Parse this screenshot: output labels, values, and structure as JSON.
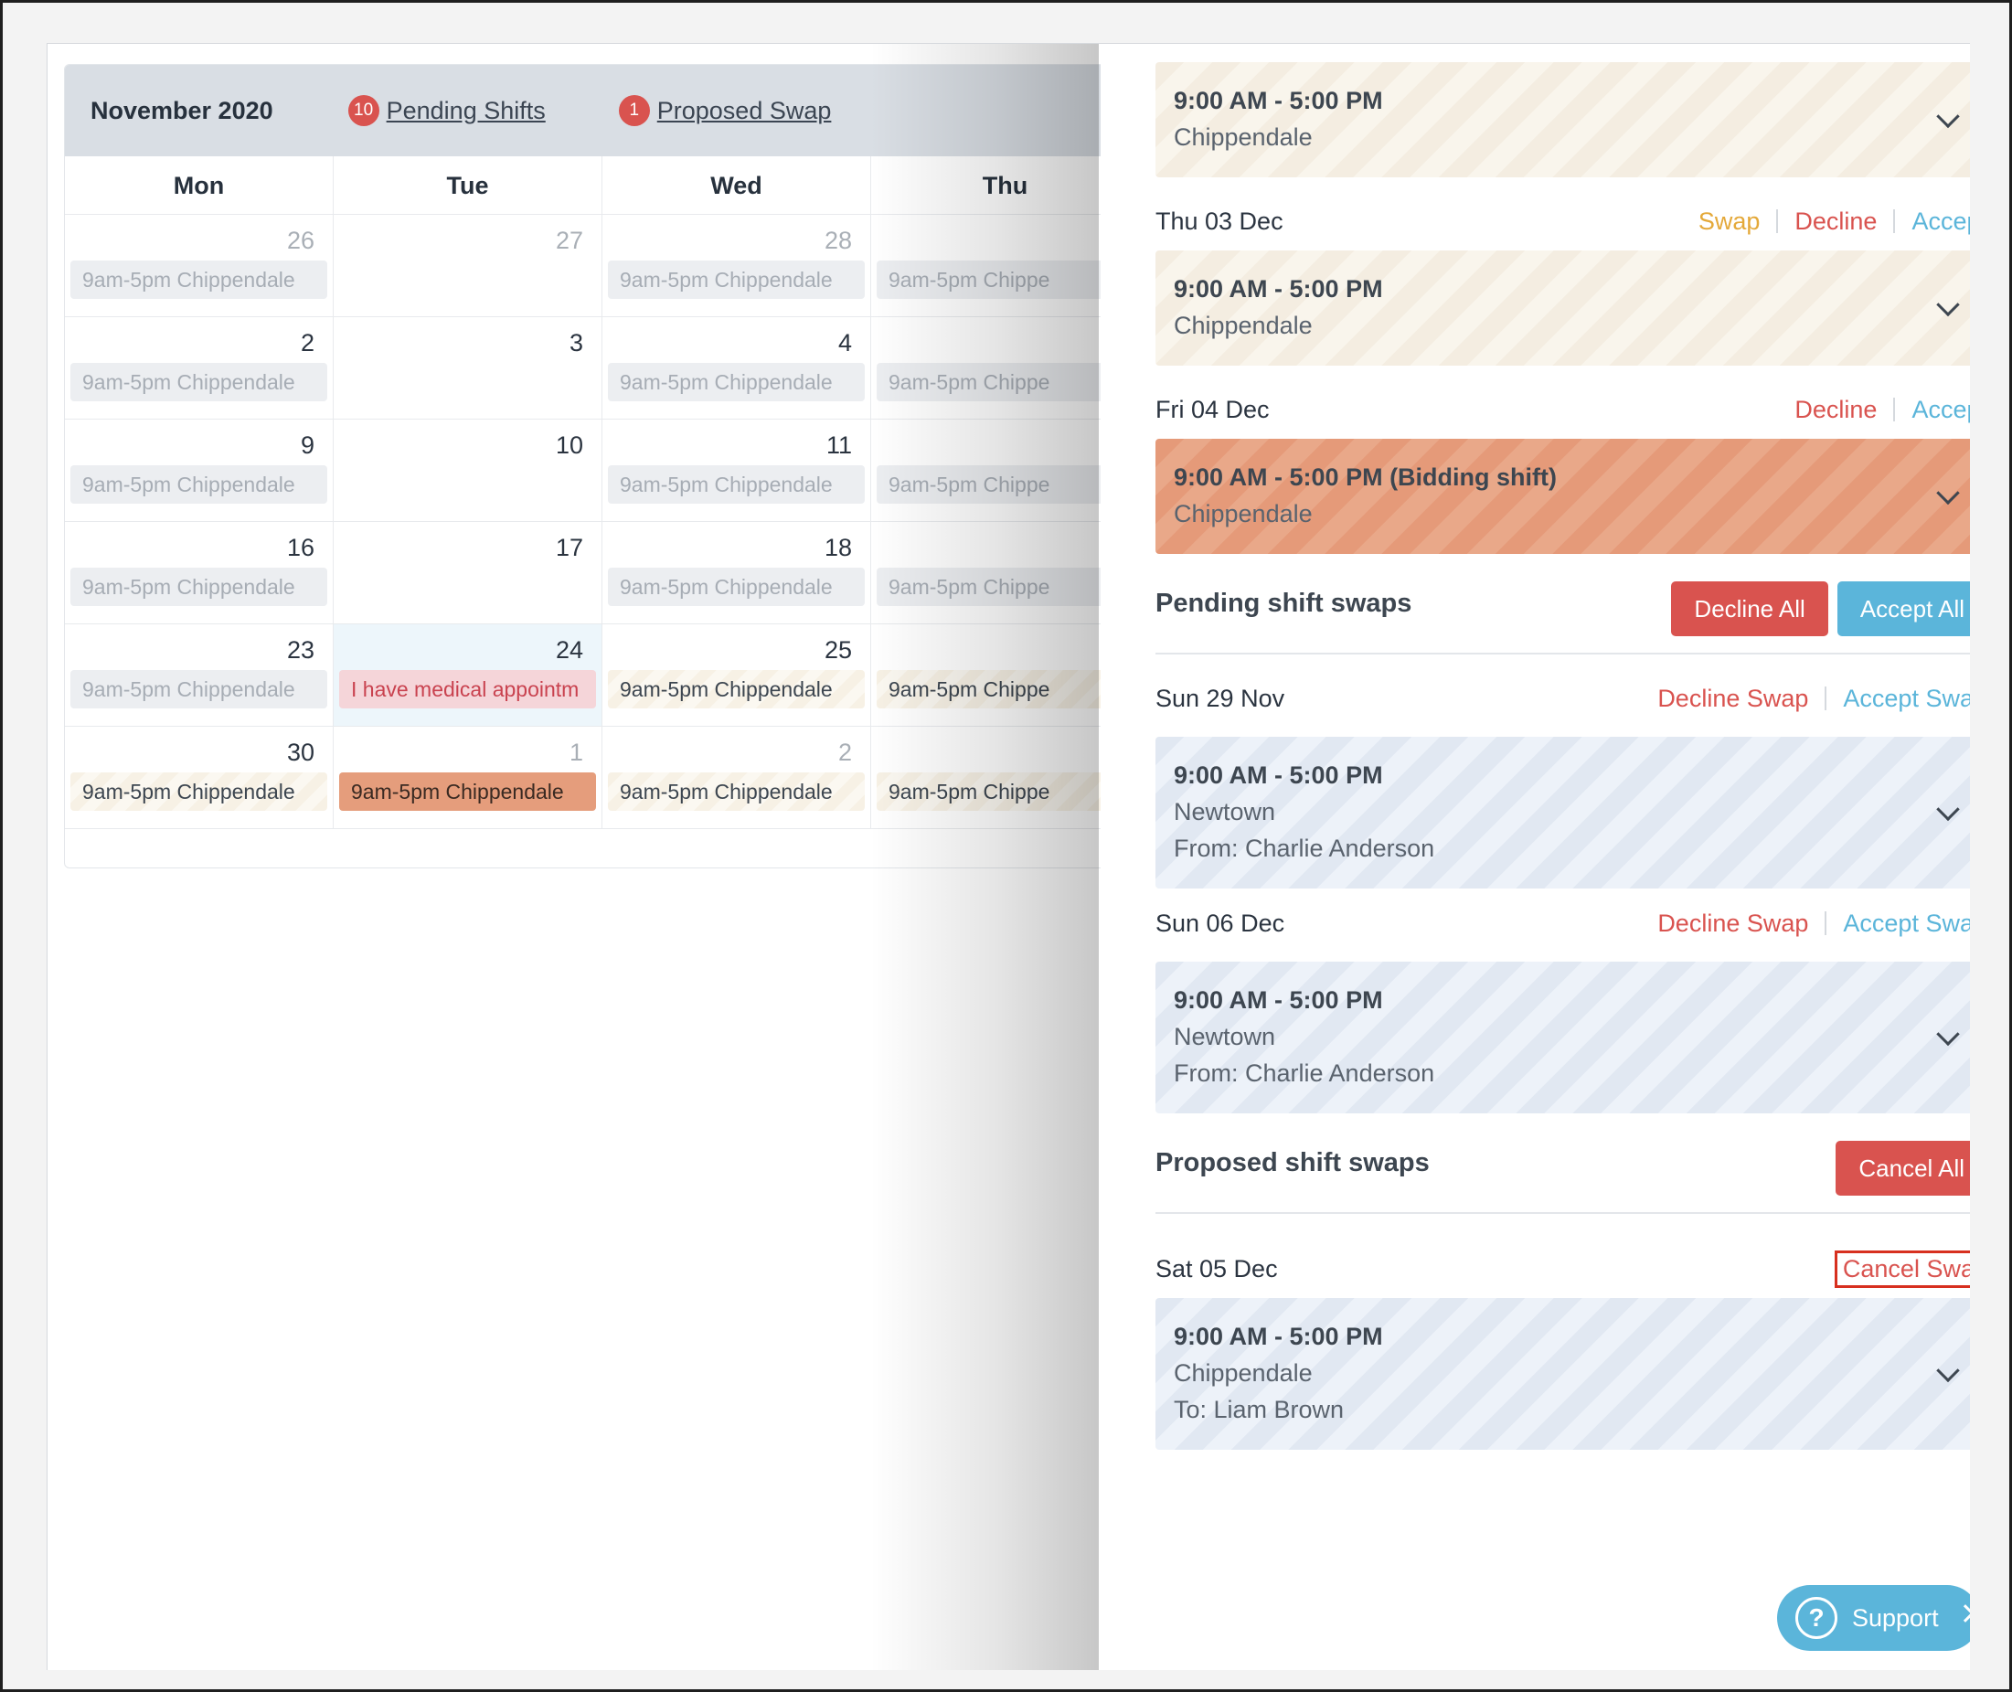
{
  "calendar": {
    "month_title": "November 2020",
    "pending_shifts": {
      "count": "10",
      "label": "Pending Shifts"
    },
    "proposed_swap": {
      "count": "1",
      "label": "Proposed Swap"
    },
    "day_headers": [
      "Mon",
      "Tue",
      "Wed",
      "Thu"
    ],
    "weeks": [
      {
        "cells": [
          {
            "day": "26",
            "muted": true,
            "event": "9am-5pm Chippendale",
            "style": "grey"
          },
          {
            "day": "27",
            "muted": true,
            "event": null,
            "style": null
          },
          {
            "day": "28",
            "muted": true,
            "event": "9am-5pm Chippendale",
            "style": "grey"
          },
          {
            "day": "",
            "muted": true,
            "event": "9am-5pm Chippe",
            "style": "grey"
          }
        ]
      },
      {
        "cells": [
          {
            "day": "2",
            "muted": false,
            "event": "9am-5pm Chippendale",
            "style": "grey"
          },
          {
            "day": "3",
            "muted": false,
            "event": null,
            "style": null
          },
          {
            "day": "4",
            "muted": false,
            "event": "9am-5pm Chippendale",
            "style": "grey"
          },
          {
            "day": "",
            "muted": false,
            "event": "9am-5pm Chippe",
            "style": "grey"
          }
        ]
      },
      {
        "cells": [
          {
            "day": "9",
            "muted": false,
            "event": "9am-5pm Chippendale",
            "style": "grey"
          },
          {
            "day": "10",
            "muted": false,
            "event": null,
            "style": null
          },
          {
            "day": "11",
            "muted": false,
            "event": "9am-5pm Chippendale",
            "style": "grey"
          },
          {
            "day": "",
            "muted": false,
            "event": "9am-5pm Chippe",
            "style": "grey"
          }
        ]
      },
      {
        "cells": [
          {
            "day": "16",
            "muted": false,
            "event": "9am-5pm Chippendale",
            "style": "grey"
          },
          {
            "day": "17",
            "muted": false,
            "event": null,
            "style": null
          },
          {
            "day": "18",
            "muted": false,
            "event": "9am-5pm Chippendale",
            "style": "grey"
          },
          {
            "day": "",
            "muted": false,
            "event": "9am-5pm Chippe",
            "style": "grey"
          }
        ]
      },
      {
        "cells": [
          {
            "day": "23",
            "muted": false,
            "event": "9am-5pm Chippendale",
            "style": "grey"
          },
          {
            "day": "24",
            "muted": false,
            "today": true,
            "event": "I have medical appointm",
            "style": "pink"
          },
          {
            "day": "25",
            "muted": false,
            "event": "9am-5pm Chippendale",
            "style": "beige"
          },
          {
            "day": "",
            "muted": false,
            "event": "9am-5pm Chippe",
            "style": "beige"
          }
        ]
      },
      {
        "cells": [
          {
            "day": "30",
            "muted": false,
            "event": "9am-5pm Chippendale",
            "style": "beige"
          },
          {
            "day": "1",
            "muted": true,
            "event": "9am-5pm Chippendale",
            "style": "orange"
          },
          {
            "day": "2",
            "muted": true,
            "event": "9am-5pm Chippendale",
            "style": "beige"
          },
          {
            "day": "",
            "muted": true,
            "event": "9am-5pm Chippe",
            "style": "beige"
          }
        ]
      }
    ]
  },
  "panel": {
    "top_card": {
      "time": "9:00 AM - 5:00 PM",
      "location": "Chippendale"
    },
    "thu_03": {
      "date": "Thu 03 Dec",
      "swap": "Swap",
      "decline": "Decline",
      "accept": "Accept",
      "time": "9:00 AM - 5:00 PM",
      "location": "Chippendale"
    },
    "fri_04": {
      "date": "Fri 04 Dec",
      "decline": "Decline",
      "accept": "Accept",
      "time": "9:00 AM - 5:00 PM (Bidding shift)",
      "location": "Chippendale"
    },
    "pending_swaps": {
      "title": "Pending shift swaps",
      "decline_all": "Decline All",
      "accept_all": "Accept All",
      "items": [
        {
          "date": "Sun 29 Nov",
          "decline": "Decline Swap",
          "accept": "Accept Swap",
          "time": "9:00 AM - 5:00 PM",
          "location": "Newtown",
          "from": "From: Charlie Anderson"
        },
        {
          "date": "Sun 06 Dec",
          "decline": "Decline Swap",
          "accept": "Accept Swap",
          "time": "9:00 AM - 5:00 PM",
          "location": "Newtown",
          "from": "From: Charlie Anderson"
        }
      ]
    },
    "proposed_swaps": {
      "title": "Proposed shift swaps",
      "cancel_all": "Cancel All",
      "item": {
        "date": "Sat 05 Dec",
        "cancel": "Cancel Swap",
        "time": "9:00 AM - 5:00 PM",
        "location": "Chippendale",
        "to": "To: Liam Brown"
      }
    },
    "support": {
      "icon": "?",
      "label": "Support"
    }
  },
  "colors": {
    "danger": "#d9534f",
    "info": "#5bb5da",
    "warning": "#e4a93a",
    "header_bg": "#d9dee4",
    "highlight": "#d7301f"
  }
}
